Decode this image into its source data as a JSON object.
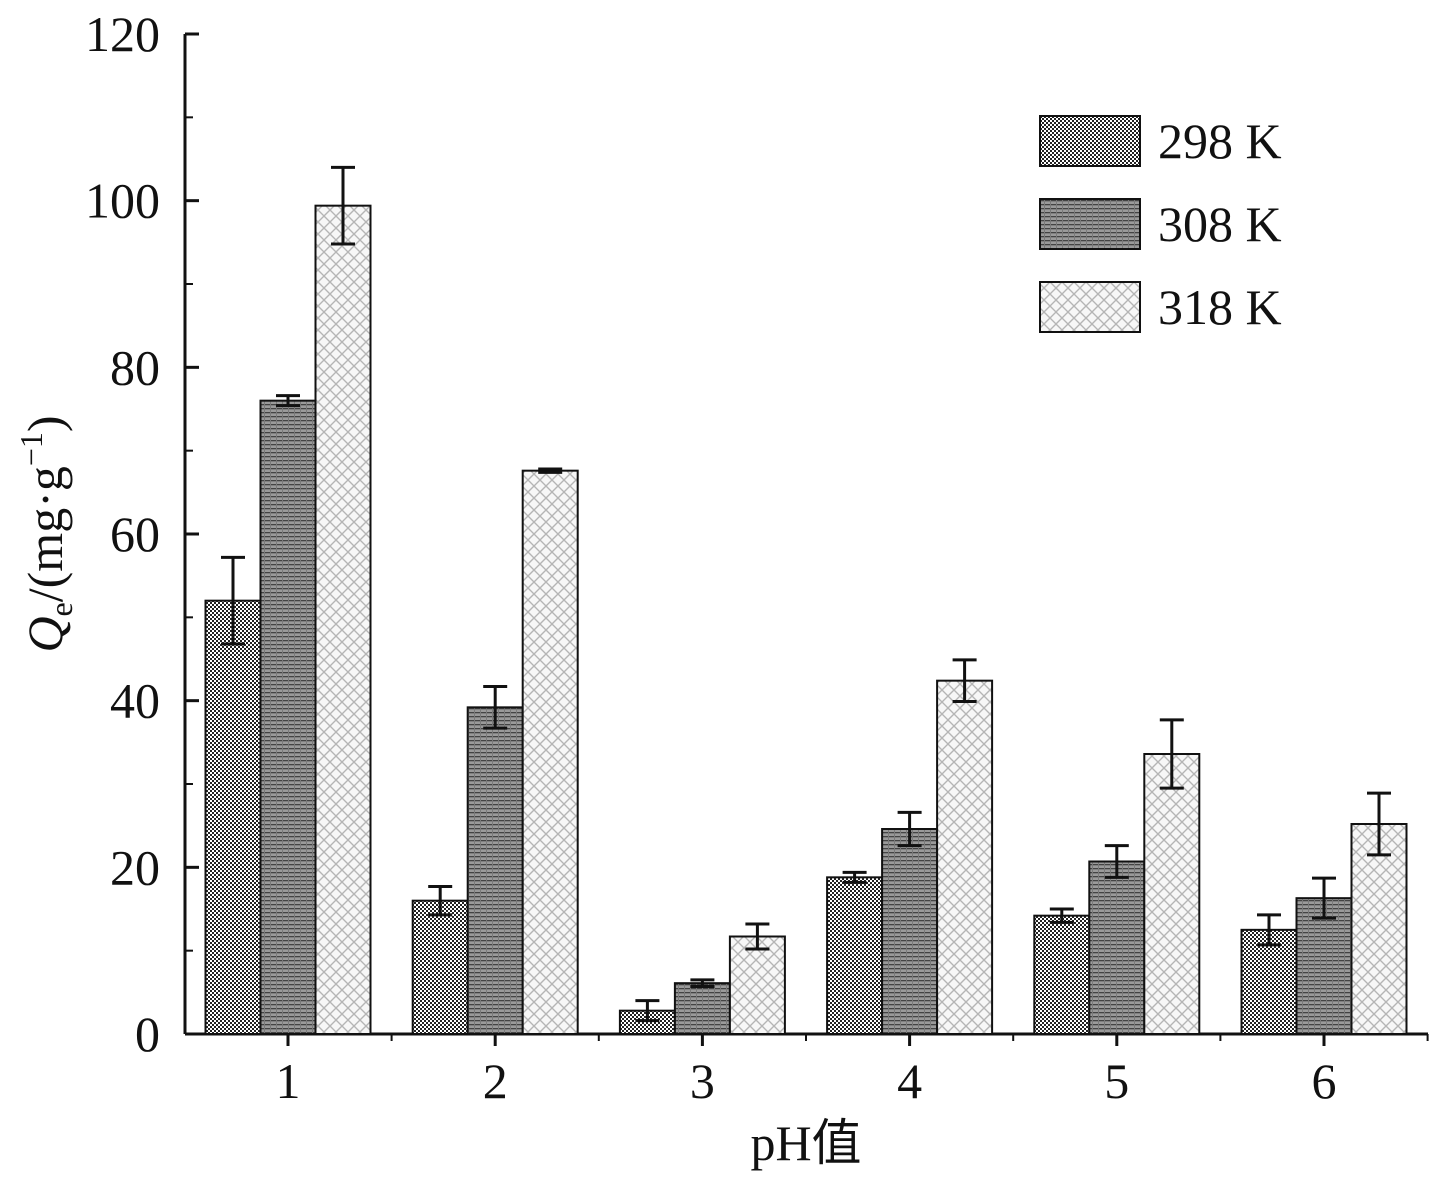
{
  "chart_data": {
    "type": "bar",
    "title": "",
    "xlabel": "pH值",
    "ylabel": {
      "symbol": "Q",
      "subscript": "e",
      "unit_prefix": "/(mg·g",
      "unit_exponent": "−1",
      "unit_suffix": ")"
    },
    "categories": [
      "1",
      "2",
      "3",
      "4",
      "5",
      "6"
    ],
    "ylim": [
      0,
      120
    ],
    "yticks": [
      "0",
      "20",
      "40",
      "60",
      "80",
      "100",
      "120"
    ],
    "legend_position": "top-right",
    "series": [
      {
        "name": "298 K",
        "pattern": "dense-check",
        "values": [
          52,
          16,
          2.8,
          18.8,
          14.2,
          12.5
        ],
        "errors": [
          5.2,
          1.7,
          1.2,
          0.6,
          0.8,
          1.8
        ]
      },
      {
        "name": "308 K",
        "pattern": "horizontal-lines",
        "values": [
          76,
          39.2,
          6.1,
          24.6,
          20.7,
          16.3
        ],
        "errors": [
          0.6,
          2.5,
          0.4,
          2.0,
          1.9,
          2.4
        ]
      },
      {
        "name": "318 K",
        "pattern": "crosshatch",
        "values": [
          99.4,
          67.6,
          11.7,
          42.4,
          33.6,
          25.2
        ],
        "errors": [
          4.6,
          0.2,
          1.5,
          2.5,
          4.1,
          3.7
        ]
      }
    ]
  }
}
